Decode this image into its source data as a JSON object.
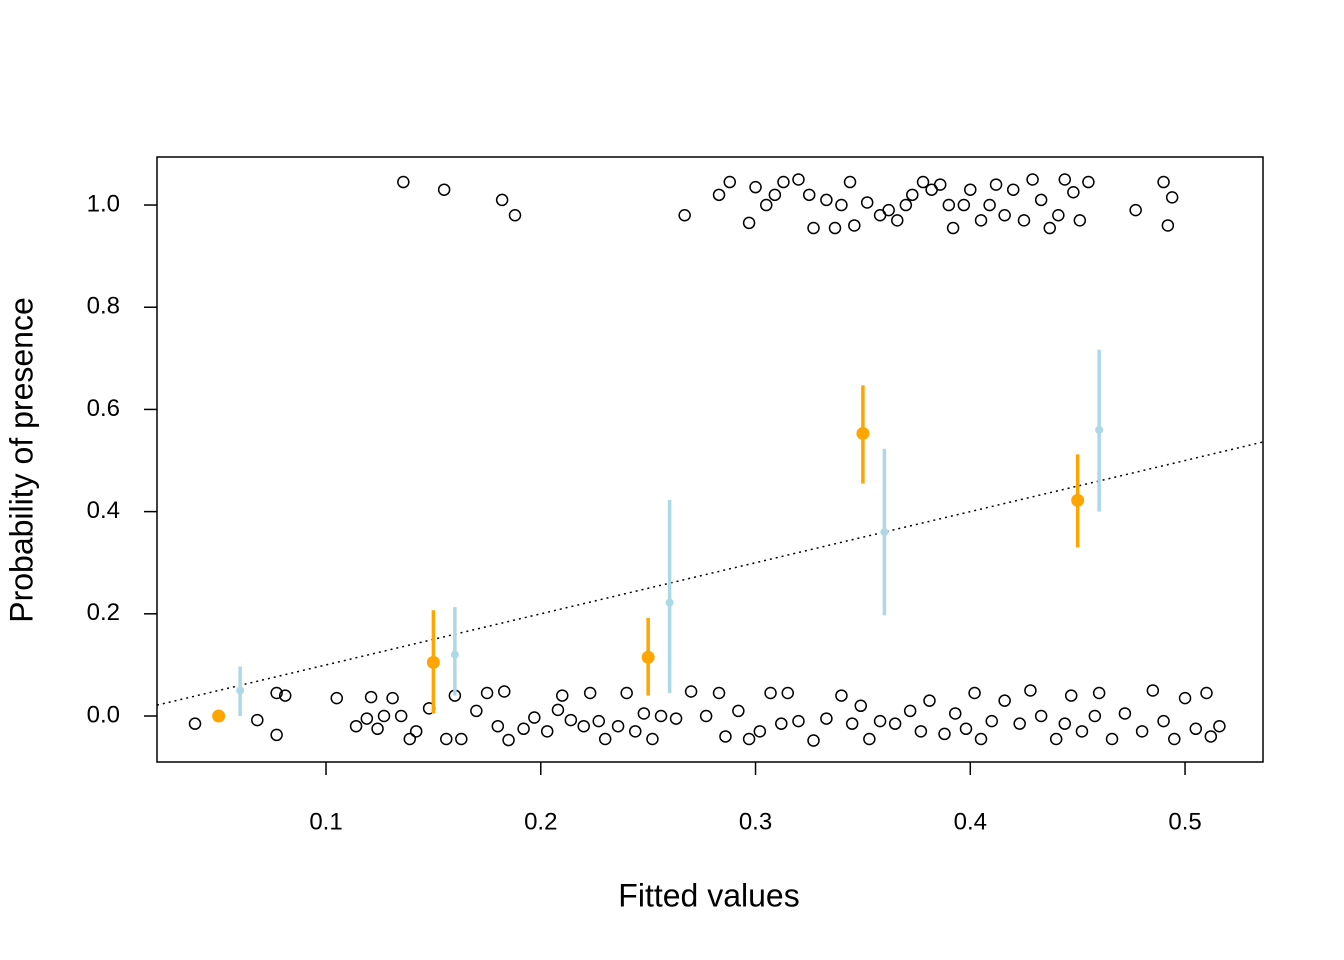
{
  "chart_data": {
    "type": "scatter",
    "xlabel": "Fitted values",
    "ylabel": "Probability of presence",
    "xlim": [
      0.0213,
      0.5363
    ],
    "ylim": [
      -0.09,
      1.094
    ],
    "xticks": [
      0.1,
      0.2,
      0.3,
      0.4,
      0.5
    ],
    "yticks": [
      {
        "value": 0,
        "label": "0.0"
      },
      0.2,
      0.4,
      0.6,
      0.8,
      {
        "value": 1,
        "label": "1.0"
      }
    ],
    "series": [
      {
        "type": "scatter",
        "color": "#000000",
        "x": [
          0.136,
          0.155,
          0.182,
          0.188,
          0.267,
          0.283,
          0.288,
          0.297,
          0.3,
          0.305,
          0.309,
          0.313,
          0.32,
          0.325,
          0.327,
          0.333,
          0.337,
          0.34,
          0.344,
          0.346,
          0.352,
          0.358,
          0.362,
          0.366,
          0.37,
          0.373,
          0.378,
          0.382,
          0.386,
          0.39,
          0.392,
          0.397,
          0.4,
          0.405,
          0.409,
          0.412,
          0.416,
          0.42,
          0.425,
          0.429,
          0.433,
          0.437,
          0.441,
          0.444,
          0.448,
          0.451,
          0.455,
          0.477,
          0.49,
          0.492,
          0.494,
          0.039,
          0.068,
          0.077,
          0.077,
          0.081,
          0.105,
          0.114,
          0.119,
          0.121,
          0.124,
          0.127,
          0.131,
          0.135,
          0.139,
          0.142,
          0.148,
          0.156,
          0.16,
          0.163,
          0.17,
          0.175,
          0.18,
          0.183,
          0.185,
          0.192,
          0.197,
          0.203,
          0.208,
          0.21,
          0.214,
          0.22,
          0.223,
          0.227,
          0.23,
          0.236,
          0.24,
          0.244,
          0.248,
          0.252,
          0.256,
          0.263,
          0.27,
          0.277,
          0.283,
          0.286,
          0.292,
          0.297,
          0.302,
          0.307,
          0.312,
          0.315,
          0.32,
          0.327,
          0.333,
          0.34,
          0.345,
          0.349,
          0.353,
          0.358,
          0.365,
          0.372,
          0.377,
          0.381,
          0.388,
          0.393,
          0.398,
          0.402,
          0.405,
          0.41,
          0.416,
          0.423,
          0.428,
          0.433,
          0.44,
          0.444,
          0.447,
          0.452,
          0.458,
          0.46,
          0.466,
          0.472,
          0.48,
          0.485,
          0.49,
          0.495,
          0.5,
          0.505,
          0.51,
          0.512,
          0.516
        ],
        "y": [
          1.045,
          1.03,
          1.01,
          0.98,
          0.98,
          1.02,
          1.045,
          0.965,
          1.035,
          1.0,
          1.02,
          1.045,
          1.05,
          1.02,
          0.955,
          1.01,
          0.955,
          1.0,
          1.045,
          0.96,
          1.005,
          0.98,
          0.99,
          0.97,
          1.0,
          1.02,
          1.045,
          1.03,
          1.04,
          1.0,
          0.955,
          1.0,
          1.03,
          0.97,
          1.0,
          1.04,
          0.98,
          1.03,
          0.97,
          1.05,
          1.01,
          0.955,
          0.98,
          1.05,
          1.025,
          0.97,
          1.045,
          0.99,
          1.045,
          0.96,
          1.015,
          -0.015,
          -0.008,
          0.045,
          -0.037,
          0.04,
          0.035,
          -0.02,
          -0.005,
          0.037,
          -0.025,
          0.0,
          0.035,
          0.0,
          -0.045,
          -0.03,
          0.015,
          -0.045,
          0.04,
          -0.045,
          0.01,
          0.045,
          -0.02,
          0.048,
          -0.047,
          -0.025,
          -0.003,
          -0.03,
          0.012,
          0.04,
          -0.008,
          -0.02,
          0.045,
          -0.01,
          -0.045,
          -0.02,
          0.045,
          -0.03,
          0.005,
          -0.045,
          0.0,
          -0.005,
          0.048,
          0.0,
          0.045,
          -0.04,
          0.01,
          -0.045,
          -0.03,
          0.045,
          -0.015,
          0.045,
          -0.01,
          -0.048,
          -0.005,
          0.04,
          -0.015,
          0.02,
          -0.045,
          -0.01,
          -0.015,
          0.01,
          -0.03,
          0.03,
          -0.035,
          0.005,
          -0.025,
          0.045,
          -0.045,
          -0.01,
          0.03,
          -0.015,
          0.05,
          0.0,
          -0.045,
          -0.015,
          0.04,
          -0.03,
          0.0,
          0.045,
          -0.045,
          0.005,
          -0.03,
          0.05,
          -0.01,
          -0.045,
          0.035,
          -0.025,
          0.045,
          -0.04,
          -0.02
        ]
      },
      {
        "type": "line",
        "color": "#000000",
        "dashed": true,
        "x": [
          0.0213,
          0.5363
        ],
        "y": [
          0.0213,
          0.5363
        ]
      },
      {
        "type": "errorbar",
        "color": "#ffa500",
        "x": [
          0.05,
          0.15,
          0.25,
          0.35,
          0.45
        ],
        "y": [
          0.0,
          0.105,
          0.115,
          0.553,
          0.422
        ],
        "lower": [
          0.0,
          0.005,
          0.04,
          0.455,
          0.33
        ],
        "upper": [
          0.0,
          0.207,
          0.192,
          0.647,
          0.512
        ]
      },
      {
        "type": "errorbar",
        "color": "#add8e6",
        "x": [
          0.06,
          0.16,
          0.26,
          0.36,
          0.46
        ],
        "y": [
          0.05,
          0.12,
          0.222,
          0.36,
          0.56
        ],
        "lower": [
          0.0,
          0.04,
          0.045,
          0.197,
          0.4
        ],
        "upper": [
          0.097,
          0.213,
          0.423,
          0.523,
          0.717
        ]
      }
    ]
  }
}
